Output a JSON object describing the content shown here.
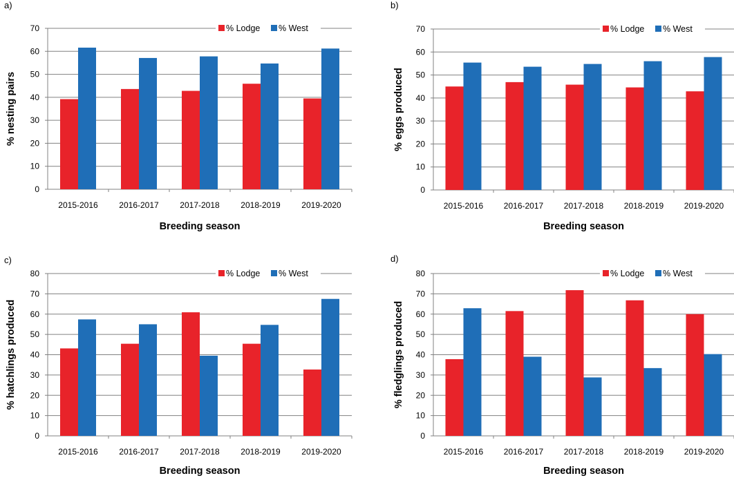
{
  "figure": {
    "colors": {
      "lodge": "#e8232a",
      "west": "#1f6eb7",
      "axis": "#808080"
    },
    "panels": [
      {
        "chart_data": {
          "type": "bar",
          "panel_label": "a)",
          "categories": [
            "2015-2016",
            "2016-2017",
            "2017-2018",
            "2018-2019",
            "2019-2020"
          ],
          "series": [
            {
              "name": "% Lodge",
              "values": [
                39.2,
                43.6,
                42.8,
                45.9,
                39.5
              ]
            },
            {
              "name": "% West",
              "values": [
                61.6,
                57.1,
                57.8,
                54.7,
                61.2
              ]
            }
          ],
          "xlabel": "Breeding season",
          "ylabel": "% nesting pairs",
          "ylim": [
            0,
            70
          ],
          "yticks": [
            0,
            10,
            20,
            30,
            40,
            50,
            60,
            70
          ],
          "legend": "top-right",
          "grid": true
        }
      },
      {
        "chart_data": {
          "type": "bar",
          "panel_label": "b)",
          "categories": [
            "2015-2016",
            "2016-2017",
            "2017-2018",
            "2018-2019",
            "2019-2020"
          ],
          "series": [
            {
              "name": "% Lodge",
              "values": [
                45.0,
                46.9,
                45.8,
                44.6,
                42.9
              ]
            },
            {
              "name": "% West",
              "values": [
                55.4,
                53.6,
                54.8,
                56.0,
                57.8
              ]
            }
          ],
          "xlabel": "Breeding season",
          "ylabel": "% eggs produced",
          "ylim": [
            0,
            70
          ],
          "yticks": [
            0,
            10,
            20,
            30,
            40,
            50,
            60,
            70
          ],
          "legend": "top-right",
          "grid": true
        }
      },
      {
        "chart_data": {
          "type": "bar",
          "panel_label": "c)",
          "categories": [
            "2015-2016",
            "2016-2017",
            "2017-2018",
            "2018-2019",
            "2019-2020"
          ],
          "series": [
            {
              "name": "% Lodge",
              "values": [
                43.1,
                45.4,
                60.9,
                45.4,
                32.7
              ]
            },
            {
              "name": "% West",
              "values": [
                57.4,
                55.0,
                39.5,
                54.7,
                67.5
              ]
            }
          ],
          "xlabel": "Breeding season",
          "ylabel": "% hatchlings produced",
          "ylim": [
            0,
            80
          ],
          "yticks": [
            0,
            10,
            20,
            30,
            40,
            50,
            60,
            70,
            80
          ],
          "legend": "top-right",
          "grid": true
        }
      },
      {
        "chart_data": {
          "type": "bar",
          "panel_label": "d)",
          "categories": [
            "2015-2016",
            "2016-2017",
            "2017-2018",
            "2018-2019",
            "2019-2020"
          ],
          "series": [
            {
              "name": "% Lodge",
              "values": [
                37.8,
                61.5,
                71.8,
                66.8,
                60.0
              ]
            },
            {
              "name": "% West",
              "values": [
                62.9,
                39.0,
                28.8,
                33.4,
                40.3
              ]
            }
          ],
          "xlabel": "Breeding season",
          "ylabel": "% fledglings produced",
          "ylim": [
            0,
            80
          ],
          "yticks": [
            0,
            10,
            20,
            30,
            40,
            50,
            60,
            70,
            80
          ],
          "legend": "top-right",
          "grid": true
        }
      }
    ]
  }
}
